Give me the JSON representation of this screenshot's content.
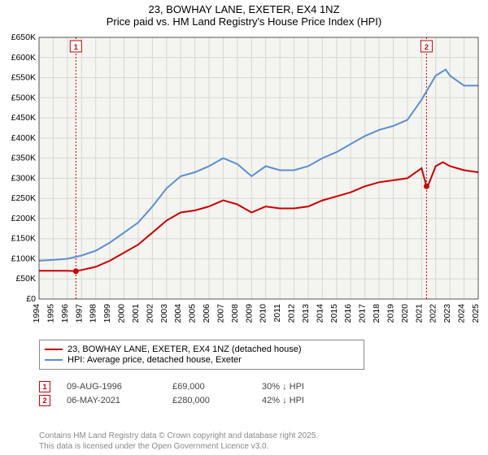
{
  "title": {
    "line1": "23, BOWHAY LANE, EXETER, EX4 1NZ",
    "line2": "Price paid vs. HM Land Registry's House Price Index (HPI)"
  },
  "chart": {
    "type": "line",
    "background_color": "#f4f4f0",
    "plot_bg": "#f4f4f0",
    "grid_color": "#d8d8d2",
    "axis_color": "#000000",
    "x": {
      "min": 1994,
      "max": 2025,
      "tick_step": 1,
      "ticks": [
        1994,
        1995,
        1996,
        1997,
        1998,
        1999,
        2000,
        2001,
        2002,
        2003,
        2004,
        2005,
        2006,
        2007,
        2008,
        2009,
        2010,
        2011,
        2012,
        2013,
        2014,
        2015,
        2016,
        2017,
        2018,
        2019,
        2020,
        2021,
        2022,
        2023,
        2024,
        2025
      ]
    },
    "y": {
      "min": 0,
      "max": 650000,
      "tick_step": 50000,
      "tick_labels": [
        "£0",
        "£50K",
        "£100K",
        "£150K",
        "£200K",
        "£250K",
        "£300K",
        "£350K",
        "£400K",
        "£450K",
        "£500K",
        "£550K",
        "£600K",
        "£650K"
      ]
    },
    "series": [
      {
        "name": "price_paid",
        "label": "23, BOWHAY LANE, EXETER, EX4 1NZ (detached house)",
        "color": "#cc0000",
        "width": 2,
        "data": [
          [
            1994,
            70000
          ],
          [
            1995,
            70000
          ],
          [
            1996,
            70000
          ],
          [
            1996.6,
            69000
          ],
          [
            1997,
            72000
          ],
          [
            1998,
            80000
          ],
          [
            1999,
            95000
          ],
          [
            2000,
            115000
          ],
          [
            2001,
            135000
          ],
          [
            2002,
            165000
          ],
          [
            2003,
            195000
          ],
          [
            2004,
            215000
          ],
          [
            2005,
            220000
          ],
          [
            2006,
            230000
          ],
          [
            2007,
            245000
          ],
          [
            2008,
            235000
          ],
          [
            2009,
            215000
          ],
          [
            2010,
            230000
          ],
          [
            2011,
            225000
          ],
          [
            2012,
            225000
          ],
          [
            2013,
            230000
          ],
          [
            2014,
            245000
          ],
          [
            2015,
            255000
          ],
          [
            2016,
            265000
          ],
          [
            2017,
            280000
          ],
          [
            2018,
            290000
          ],
          [
            2019,
            295000
          ],
          [
            2020,
            300000
          ],
          [
            2021,
            325000
          ],
          [
            2021.35,
            280000
          ],
          [
            2021.5,
            285000
          ],
          [
            2022,
            330000
          ],
          [
            2022.5,
            340000
          ],
          [
            2023,
            330000
          ],
          [
            2024,
            320000
          ],
          [
            2025,
            315000
          ]
        ]
      },
      {
        "name": "hpi",
        "label": "HPI: Average price, detached house, Exeter",
        "color": "#5b8fce",
        "width": 2,
        "data": [
          [
            1994,
            95000
          ],
          [
            1995,
            97000
          ],
          [
            1996,
            100000
          ],
          [
            1997,
            108000
          ],
          [
            1998,
            120000
          ],
          [
            1999,
            140000
          ],
          [
            2000,
            165000
          ],
          [
            2001,
            190000
          ],
          [
            2002,
            230000
          ],
          [
            2003,
            275000
          ],
          [
            2004,
            305000
          ],
          [
            2005,
            315000
          ],
          [
            2006,
            330000
          ],
          [
            2007,
            350000
          ],
          [
            2008,
            335000
          ],
          [
            2009,
            305000
          ],
          [
            2010,
            330000
          ],
          [
            2011,
            320000
          ],
          [
            2012,
            320000
          ],
          [
            2013,
            330000
          ],
          [
            2014,
            350000
          ],
          [
            2015,
            365000
          ],
          [
            2016,
            385000
          ],
          [
            2017,
            405000
          ],
          [
            2018,
            420000
          ],
          [
            2019,
            430000
          ],
          [
            2020,
            445000
          ],
          [
            2021,
            495000
          ],
          [
            2022,
            555000
          ],
          [
            2022.7,
            570000
          ],
          [
            2023,
            555000
          ],
          [
            2024,
            530000
          ],
          [
            2025,
            530000
          ]
        ]
      }
    ],
    "markers": [
      {
        "num": "1",
        "x": 1996.6,
        "y": 69000,
        "color": "#cc0000"
      },
      {
        "num": "2",
        "x": 2021.35,
        "y": 280000,
        "color": "#cc0000"
      }
    ],
    "marker_label_y_top": 640000
  },
  "legend": {
    "items": [
      {
        "label": "23, BOWHAY LANE, EXETER, EX4 1NZ (detached house)",
        "color": "#cc0000"
      },
      {
        "label": "HPI: Average price, detached house, Exeter",
        "color": "#5b8fce"
      }
    ]
  },
  "marker_table": [
    {
      "num": "1",
      "color": "#cc0000",
      "date": "09-AUG-1996",
      "price": "£69,000",
      "delta": "30% ↓ HPI"
    },
    {
      "num": "2",
      "color": "#cc0000",
      "date": "06-MAY-2021",
      "price": "£280,000",
      "delta": "42% ↓ HPI"
    }
  ],
  "footer": {
    "line1": "Contains HM Land Registry data © Crown copyright and database right 2025.",
    "line2": "This data is licensed under the Open Government Licence v3.0."
  }
}
